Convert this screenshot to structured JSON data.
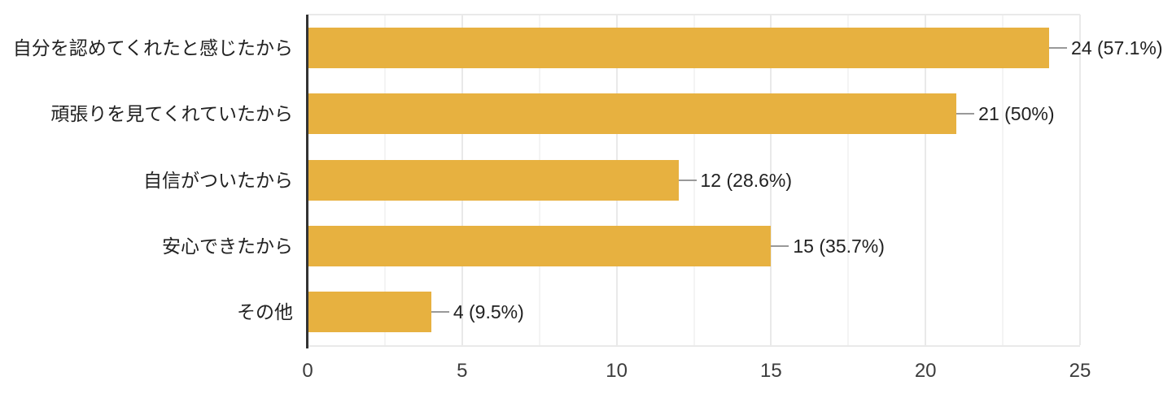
{
  "chart_data": {
    "type": "bar",
    "orientation": "horizontal",
    "title": "",
    "xlabel": "",
    "ylabel": "",
    "categories": [
      "自分を認めてくれたと感じたから",
      "頑張りを見てくれていたから",
      "自信がついたから",
      "安心できたから",
      "その他"
    ],
    "values": [
      24,
      21,
      12,
      15,
      4
    ],
    "value_labels": [
      "24 (57.1%)",
      "21 (50%)",
      "12 (28.6%)",
      "15 (35.7%)",
      "4 (9.5%)"
    ],
    "percentages": [
      57.1,
      50,
      28.6,
      35.7,
      9.5
    ],
    "xlim": [
      0,
      25
    ],
    "x_ticks": [
      0,
      5,
      10,
      15,
      20,
      25
    ],
    "grid": true,
    "legend": "none",
    "colors": {
      "bar": "#E7B140",
      "axis": "#333333",
      "major_gridline": "#e9e9e9",
      "minor_gridline": "#f4f4f4",
      "callout": "#999999",
      "label_text": "#212121",
      "tick_text": "#3c3c3c",
      "background": "#ffffff"
    }
  }
}
